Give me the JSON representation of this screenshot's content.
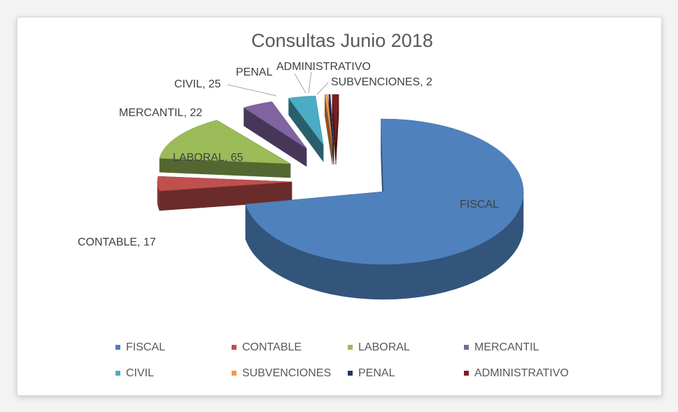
{
  "chart_data": {
    "type": "pie",
    "title": "Consultas Junio 2018",
    "slices": [
      {
        "name": "FISCAL",
        "label": "FISCAL",
        "color": "#4f81bd"
      },
      {
        "name": "CONTABLE",
        "label": "CONTABLE, 17",
        "value": 17,
        "color": "#c0504d"
      },
      {
        "name": "LABORAL",
        "label": "LABORAL, 65",
        "value": 65,
        "color": "#9bbb59"
      },
      {
        "name": "MERCANTIL",
        "label": "MERCANTIL, 22",
        "value": 22,
        "color": "#8064a2"
      },
      {
        "name": "CIVIL",
        "label": "CIVIL, 25",
        "value": 25,
        "color": "#4bacc6"
      },
      {
        "name": "SUBVENCIONES",
        "label": "SUBVENCIONES, 2",
        "value": 2,
        "color": "#f79646"
      },
      {
        "name": "PENAL",
        "label": "PENAL",
        "color": "#1f3864"
      },
      {
        "name": "ADMINISTRATIVO",
        "label": "ADMINISTRATIVO",
        "color": "#7f1f1f"
      }
    ],
    "legend": {
      "position": "bottom",
      "items": [
        "FISCAL",
        "CONTABLE",
        "LABORAL",
        "MERCANTIL",
        "CIVIL",
        "SUBVENCIONES",
        "PENAL",
        "ADMINISTRATIVO"
      ]
    },
    "style": "3d-exploded"
  }
}
